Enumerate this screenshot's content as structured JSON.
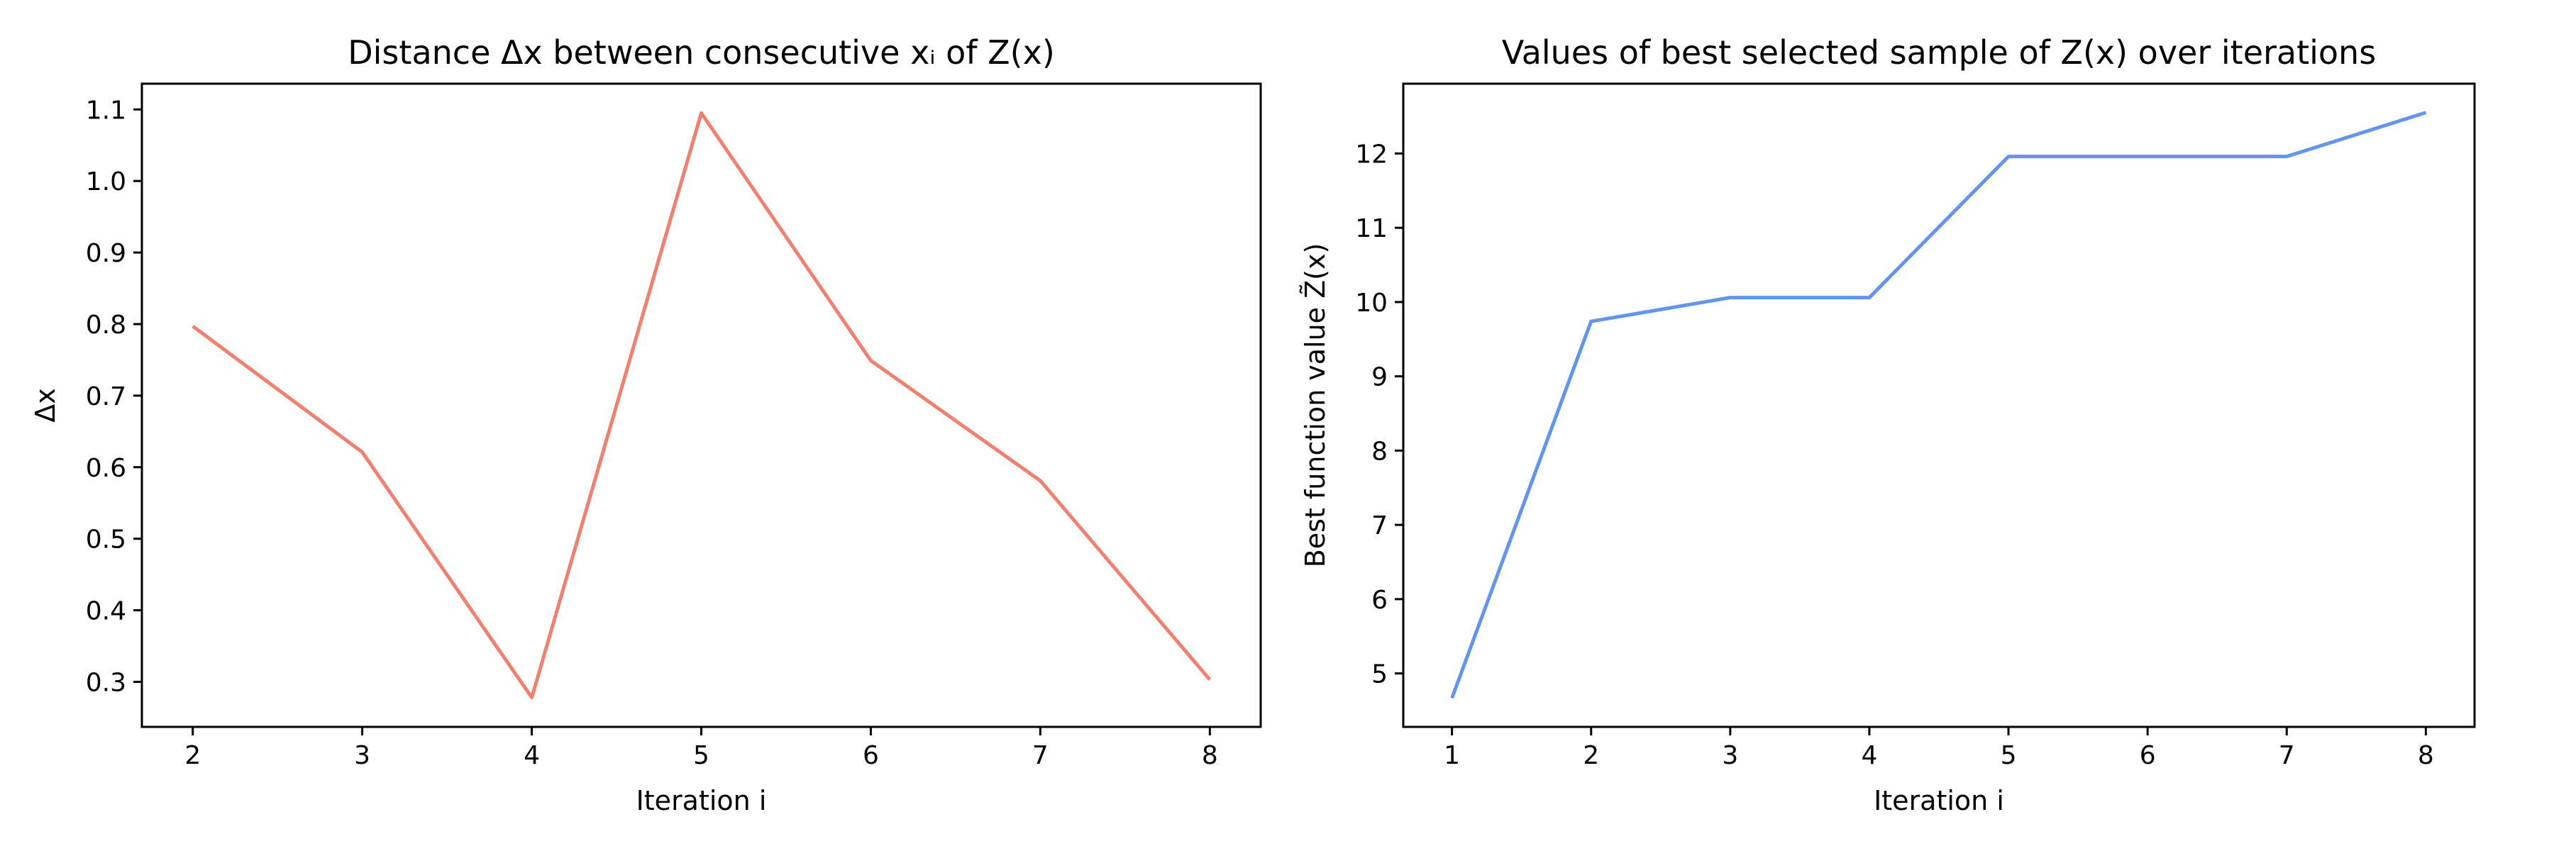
{
  "chart_data": [
    {
      "type": "line",
      "title": "Distance Δx between consecutive xᵢ of Z(x)",
      "xlabel": "Iteration i",
      "ylabel": "Δx",
      "x": [
        2,
        3,
        4,
        5,
        6,
        7,
        8
      ],
      "series": [
        {
          "color": "#f08070",
          "values": [
            0.797,
            0.621,
            0.278,
            1.095,
            0.749,
            0.581,
            0.303
          ]
        }
      ],
      "xlim": [
        1.7,
        8.3
      ],
      "ylim": [
        0.237,
        1.136
      ],
      "xticks": [
        2,
        3,
        4,
        5,
        6,
        7,
        8
      ],
      "yticks": [
        0.3,
        0.4,
        0.5,
        0.6,
        0.7,
        0.8,
        0.9,
        1.0,
        1.1
      ],
      "ytick_labels": [
        "0.3",
        "0.4",
        "0.5",
        "0.6",
        "0.7",
        "0.8",
        "0.9",
        "1.0",
        "1.1"
      ],
      "grid": false,
      "legend": "none"
    },
    {
      "type": "line",
      "title": "Values of best selected sample of Z(x) over iterations",
      "xlabel": "Iteration i",
      "ylabel": "Best function value Z̃(x)",
      "x": [
        1,
        2,
        3,
        4,
        5,
        6,
        7,
        8
      ],
      "series": [
        {
          "color": "#6495ed",
          "values": [
            4.67,
            9.74,
            10.06,
            10.06,
            11.96,
            11.96,
            11.96,
            12.55
          ]
        }
      ],
      "xlim": [
        0.65,
        8.35
      ],
      "ylim": [
        4.28,
        12.94
      ],
      "xticks": [
        1,
        2,
        3,
        4,
        5,
        6,
        7,
        8
      ],
      "yticks": [
        5,
        6,
        7,
        8,
        9,
        10,
        11,
        12
      ],
      "ytick_labels": [
        "5",
        "6",
        "7",
        "8",
        "9",
        "10",
        "11",
        "12"
      ],
      "grid": false,
      "legend": "none"
    }
  ]
}
